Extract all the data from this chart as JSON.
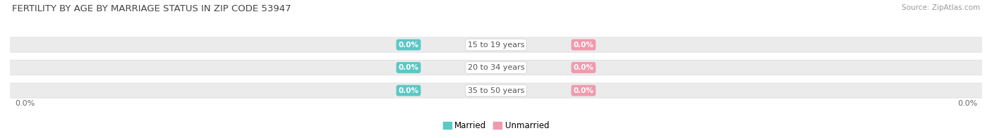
{
  "title": "FERTILITY BY AGE BY MARRIAGE STATUS IN ZIP CODE 53947",
  "source": "Source: ZipAtlas.com",
  "categories": [
    "15 to 19 years",
    "20 to 34 years",
    "35 to 50 years"
  ],
  "married_values": [
    0.0,
    0.0,
    0.0
  ],
  "unmarried_values": [
    0.0,
    0.0,
    0.0
  ],
  "married_color": "#5BC8C5",
  "unmarried_color": "#F09AAE",
  "bar_bg_color": "#EBEBEB",
  "axis_label_left": "0.0%",
  "axis_label_right": "0.0%",
  "title_fontsize": 9.5,
  "source_fontsize": 7.5,
  "legend_married": "Married",
  "legend_unmarried": "Unmarried",
  "background_color": "#FFFFFF",
  "bar_height": 0.62,
  "xlim": [
    -1,
    1
  ]
}
